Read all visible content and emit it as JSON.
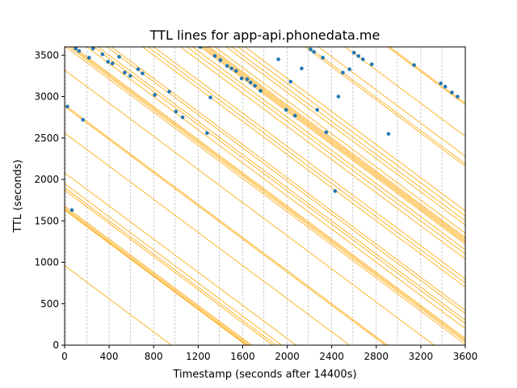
{
  "chart_data": {
    "type": "line",
    "title": "TTL lines for app-api.phonedata.me",
    "xlabel": "Timestamp (seconds after 14400s)",
    "ylabel": "TTL (seconds)",
    "xlim": [
      0,
      3600
    ],
    "ylim": [
      0,
      3600
    ],
    "xticks": [
      0,
      400,
      800,
      1200,
      1600,
      2000,
      2400,
      2800,
      3200,
      3600
    ],
    "xtick_labels": [
      "0",
      "400",
      "800",
      "1200",
      "1600",
      "2000",
      "2400",
      "2800",
      "3200",
      "3600"
    ],
    "yticks": [
      0,
      500,
      1000,
      1500,
      2000,
      2500,
      3000,
      3500
    ],
    "ytick_labels": [
      "0",
      "500",
      "1000",
      "1500",
      "2000",
      "2500",
      "3000",
      "3500"
    ],
    "x_grid_lines": [
      10,
      200,
      400,
      590,
      800,
      990,
      1200,
      1390,
      1600,
      1790,
      2000,
      2190,
      2400,
      2590,
      2800,
      2990,
      3200,
      3390,
      3600
    ],
    "grid": "vertical-dashed",
    "line_slope": -1,
    "line_color": "#ffa500",
    "point_color": "#1f77b4",
    "lines": [
      {
        "x": 0,
        "y": 1680
      },
      {
        "x": 0,
        "y": 1660
      },
      {
        "x": 0,
        "y": 1640
      },
      {
        "x": 0,
        "y": 1630
      },
      {
        "x": 0,
        "y": 960
      },
      {
        "x": 0,
        "y": 2080
      },
      {
        "x": 0,
        "y": 1950
      },
      {
        "x": 0,
        "y": 1900
      },
      {
        "x": 0,
        "y": 1870
      },
      {
        "x": 0,
        "y": 2900
      },
      {
        "x": 0,
        "y": 2880
      },
      {
        "x": 0,
        "y": 2560
      },
      {
        "x": 0,
        "y": 3320
      },
      {
        "x": 0,
        "y": 3680
      },
      {
        "x": 0,
        "y": 3660
      },
      {
        "x": 0,
        "y": 3640
      },
      {
        "x": 0,
        "y": 3610
      },
      {
        "x": 0,
        "y": 3800
      },
      {
        "x": 0,
        "y": 3860
      },
      {
        "x": 0,
        "y": 3900
      },
      {
        "x": 0,
        "y": 3980
      },
      {
        "x": 0,
        "y": 4020
      },
      {
        "x": 0,
        "y": 4300
      },
      {
        "x": 0,
        "y": 4350
      },
      {
        "x": 0,
        "y": 4400
      },
      {
        "x": 0,
        "y": 4640
      },
      {
        "x": 0,
        "y": 4700
      },
      {
        "x": 0,
        "y": 4750
      },
      {
        "x": 0,
        "y": 4820
      },
      {
        "x": 0,
        "y": 4840
      },
      {
        "x": 0,
        "y": 4860
      },
      {
        "x": 0,
        "y": 4880
      },
      {
        "x": 0,
        "y": 4900
      },
      {
        "x": 0,
        "y": 4950
      },
      {
        "x": 0,
        "y": 5050
      },
      {
        "x": 0,
        "y": 5100
      },
      {
        "x": 0,
        "y": 5160
      },
      {
        "x": 0,
        "y": 5220
      },
      {
        "x": 0,
        "y": 5760
      },
      {
        "x": 0,
        "y": 5790
      },
      {
        "x": 0,
        "y": 5880
      },
      {
        "x": 0,
        "y": 6120
      },
      {
        "x": 0,
        "y": 6500
      },
      {
        "x": 0,
        "y": 6520
      }
    ],
    "points": [
      {
        "x": 25,
        "y": 2880
      },
      {
        "x": 65,
        "y": 1630
      },
      {
        "x": 100,
        "y": 3580
      },
      {
        "x": 130,
        "y": 3550
      },
      {
        "x": 165,
        "y": 2720
      },
      {
        "x": 220,
        "y": 3470
      },
      {
        "x": 255,
        "y": 3580
      },
      {
        "x": 340,
        "y": 3510
      },
      {
        "x": 390,
        "y": 3420
      },
      {
        "x": 430,
        "y": 3400
      },
      {
        "x": 490,
        "y": 3480
      },
      {
        "x": 540,
        "y": 3290
      },
      {
        "x": 590,
        "y": 3250
      },
      {
        "x": 660,
        "y": 3330
      },
      {
        "x": 700,
        "y": 3280
      },
      {
        "x": 810,
        "y": 3020
      },
      {
        "x": 940,
        "y": 3060
      },
      {
        "x": 1000,
        "y": 2820
      },
      {
        "x": 1060,
        "y": 2750
      },
      {
        "x": 1220,
        "y": 3600
      },
      {
        "x": 1280,
        "y": 2560
      },
      {
        "x": 1310,
        "y": 2990
      },
      {
        "x": 1350,
        "y": 3490
      },
      {
        "x": 1400,
        "y": 3440
      },
      {
        "x": 1460,
        "y": 3370
      },
      {
        "x": 1500,
        "y": 3340
      },
      {
        "x": 1540,
        "y": 3310
      },
      {
        "x": 1590,
        "y": 3220
      },
      {
        "x": 1640,
        "y": 3210
      },
      {
        "x": 1670,
        "y": 3170
      },
      {
        "x": 1710,
        "y": 3130
      },
      {
        "x": 1760,
        "y": 3070
      },
      {
        "x": 1920,
        "y": 3450
      },
      {
        "x": 1990,
        "y": 2840
      },
      {
        "x": 2030,
        "y": 3180
      },
      {
        "x": 2070,
        "y": 2770
      },
      {
        "x": 2130,
        "y": 3340
      },
      {
        "x": 2210,
        "y": 3570
      },
      {
        "x": 2240,
        "y": 3540
      },
      {
        "x": 2270,
        "y": 2840
      },
      {
        "x": 2320,
        "y": 3470
      },
      {
        "x": 2350,
        "y": 2570
      },
      {
        "x": 2430,
        "y": 1860
      },
      {
        "x": 2460,
        "y": 3000
      },
      {
        "x": 2500,
        "y": 3290
      },
      {
        "x": 2560,
        "y": 3330
      },
      {
        "x": 2600,
        "y": 3530
      },
      {
        "x": 2640,
        "y": 3490
      },
      {
        "x": 2680,
        "y": 3450
      },
      {
        "x": 2760,
        "y": 3390
      },
      {
        "x": 2910,
        "y": 2550
      },
      {
        "x": 3140,
        "y": 3380
      },
      {
        "x": 3380,
        "y": 3160
      },
      {
        "x": 3420,
        "y": 3120
      },
      {
        "x": 3480,
        "y": 3050
      },
      {
        "x": 3530,
        "y": 3000
      }
    ]
  }
}
